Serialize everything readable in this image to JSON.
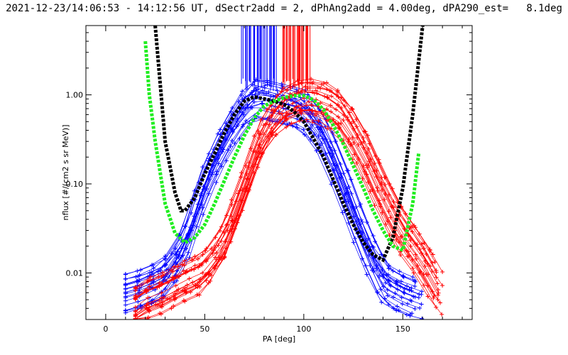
{
  "title": "2021-12-23/14:06:53 - 14:12:56 UT, dSectr2add = 2, dPhAng2add = 4.00deg, dPA290_est=   8.1deg",
  "chart_data": {
    "type": "line",
    "xlabel": "PA [deg]",
    "ylabel": "nflux [#/(cm2 s sr MeV)]",
    "xlim": [
      -10,
      185
    ],
    "ylim": [
      0.003,
      6.0
    ],
    "yscale": "log",
    "xticks": [
      {
        "v": 0,
        "label": "0"
      },
      {
        "v": 50,
        "label": "50"
      },
      {
        "v": 100,
        "label": "100"
      },
      {
        "v": 150,
        "label": "150"
      }
    ],
    "yticks": [
      {
        "v": 0.01,
        "label": "0.01"
      },
      {
        "v": 0.1,
        "label": "0.10"
      },
      {
        "v": 1.0,
        "label": "1.00"
      }
    ],
    "colors": {
      "blue": "#0000ff",
      "red": "#ff0000",
      "black": "#000000",
      "green": "#22ee22"
    },
    "series": [
      {
        "color": "blue",
        "style": "fit-lines",
        "x": [
          10,
          20,
          30,
          40,
          50,
          60,
          70,
          76,
          80,
          90,
          100,
          110,
          120,
          130,
          140,
          150,
          160
        ],
        "y": [
          0.006,
          0.007,
          0.009,
          0.02,
          0.1,
          0.3,
          0.7,
          0.95,
          0.9,
          0.8,
          0.7,
          0.35,
          0.1,
          0.025,
          0.008,
          0.006,
          0.005
        ]
      },
      {
        "color": "red",
        "style": "fit-lines",
        "x": [
          15,
          20,
          30,
          40,
          50,
          60,
          70,
          80,
          90,
          100,
          110,
          120,
          130,
          140,
          150,
          160,
          170
        ],
        "y": [
          0.004,
          0.005,
          0.006,
          0.008,
          0.01,
          0.02,
          0.08,
          0.35,
          0.7,
          0.9,
          0.85,
          0.6,
          0.25,
          0.08,
          0.03,
          0.015,
          0.006
        ]
      },
      {
        "color": "black",
        "style": "dashed",
        "x": [
          25,
          30,
          35,
          38,
          40,
          45,
          50,
          55,
          60,
          65,
          70,
          75,
          80,
          85,
          90,
          95,
          100,
          105,
          110,
          115,
          120,
          125,
          130,
          135,
          140,
          145,
          150,
          155,
          160
        ],
        "y": [
          6.0,
          0.3,
          0.08,
          0.05,
          0.05,
          0.07,
          0.13,
          0.22,
          0.38,
          0.6,
          0.85,
          0.95,
          0.9,
          0.85,
          0.78,
          0.65,
          0.5,
          0.32,
          0.2,
          0.11,
          0.06,
          0.035,
          0.022,
          0.016,
          0.014,
          0.025,
          0.09,
          0.6,
          6.0
        ]
      },
      {
        "color": "green",
        "style": "dashed",
        "x": [
          20,
          22,
          25,
          30,
          35,
          40,
          45,
          50,
          55,
          60,
          65,
          70,
          75,
          80,
          85,
          90,
          95,
          100,
          105,
          110,
          115,
          120,
          125,
          130,
          135,
          140,
          145,
          150,
          155,
          158
        ],
        "y": [
          4.0,
          1.0,
          0.3,
          0.06,
          0.028,
          0.022,
          0.025,
          0.035,
          0.06,
          0.11,
          0.2,
          0.35,
          0.55,
          0.75,
          0.85,
          0.93,
          0.98,
          0.98,
          0.88,
          0.68,
          0.45,
          0.28,
          0.16,
          0.09,
          0.05,
          0.03,
          0.02,
          0.018,
          0.06,
          0.22
        ]
      }
    ]
  }
}
